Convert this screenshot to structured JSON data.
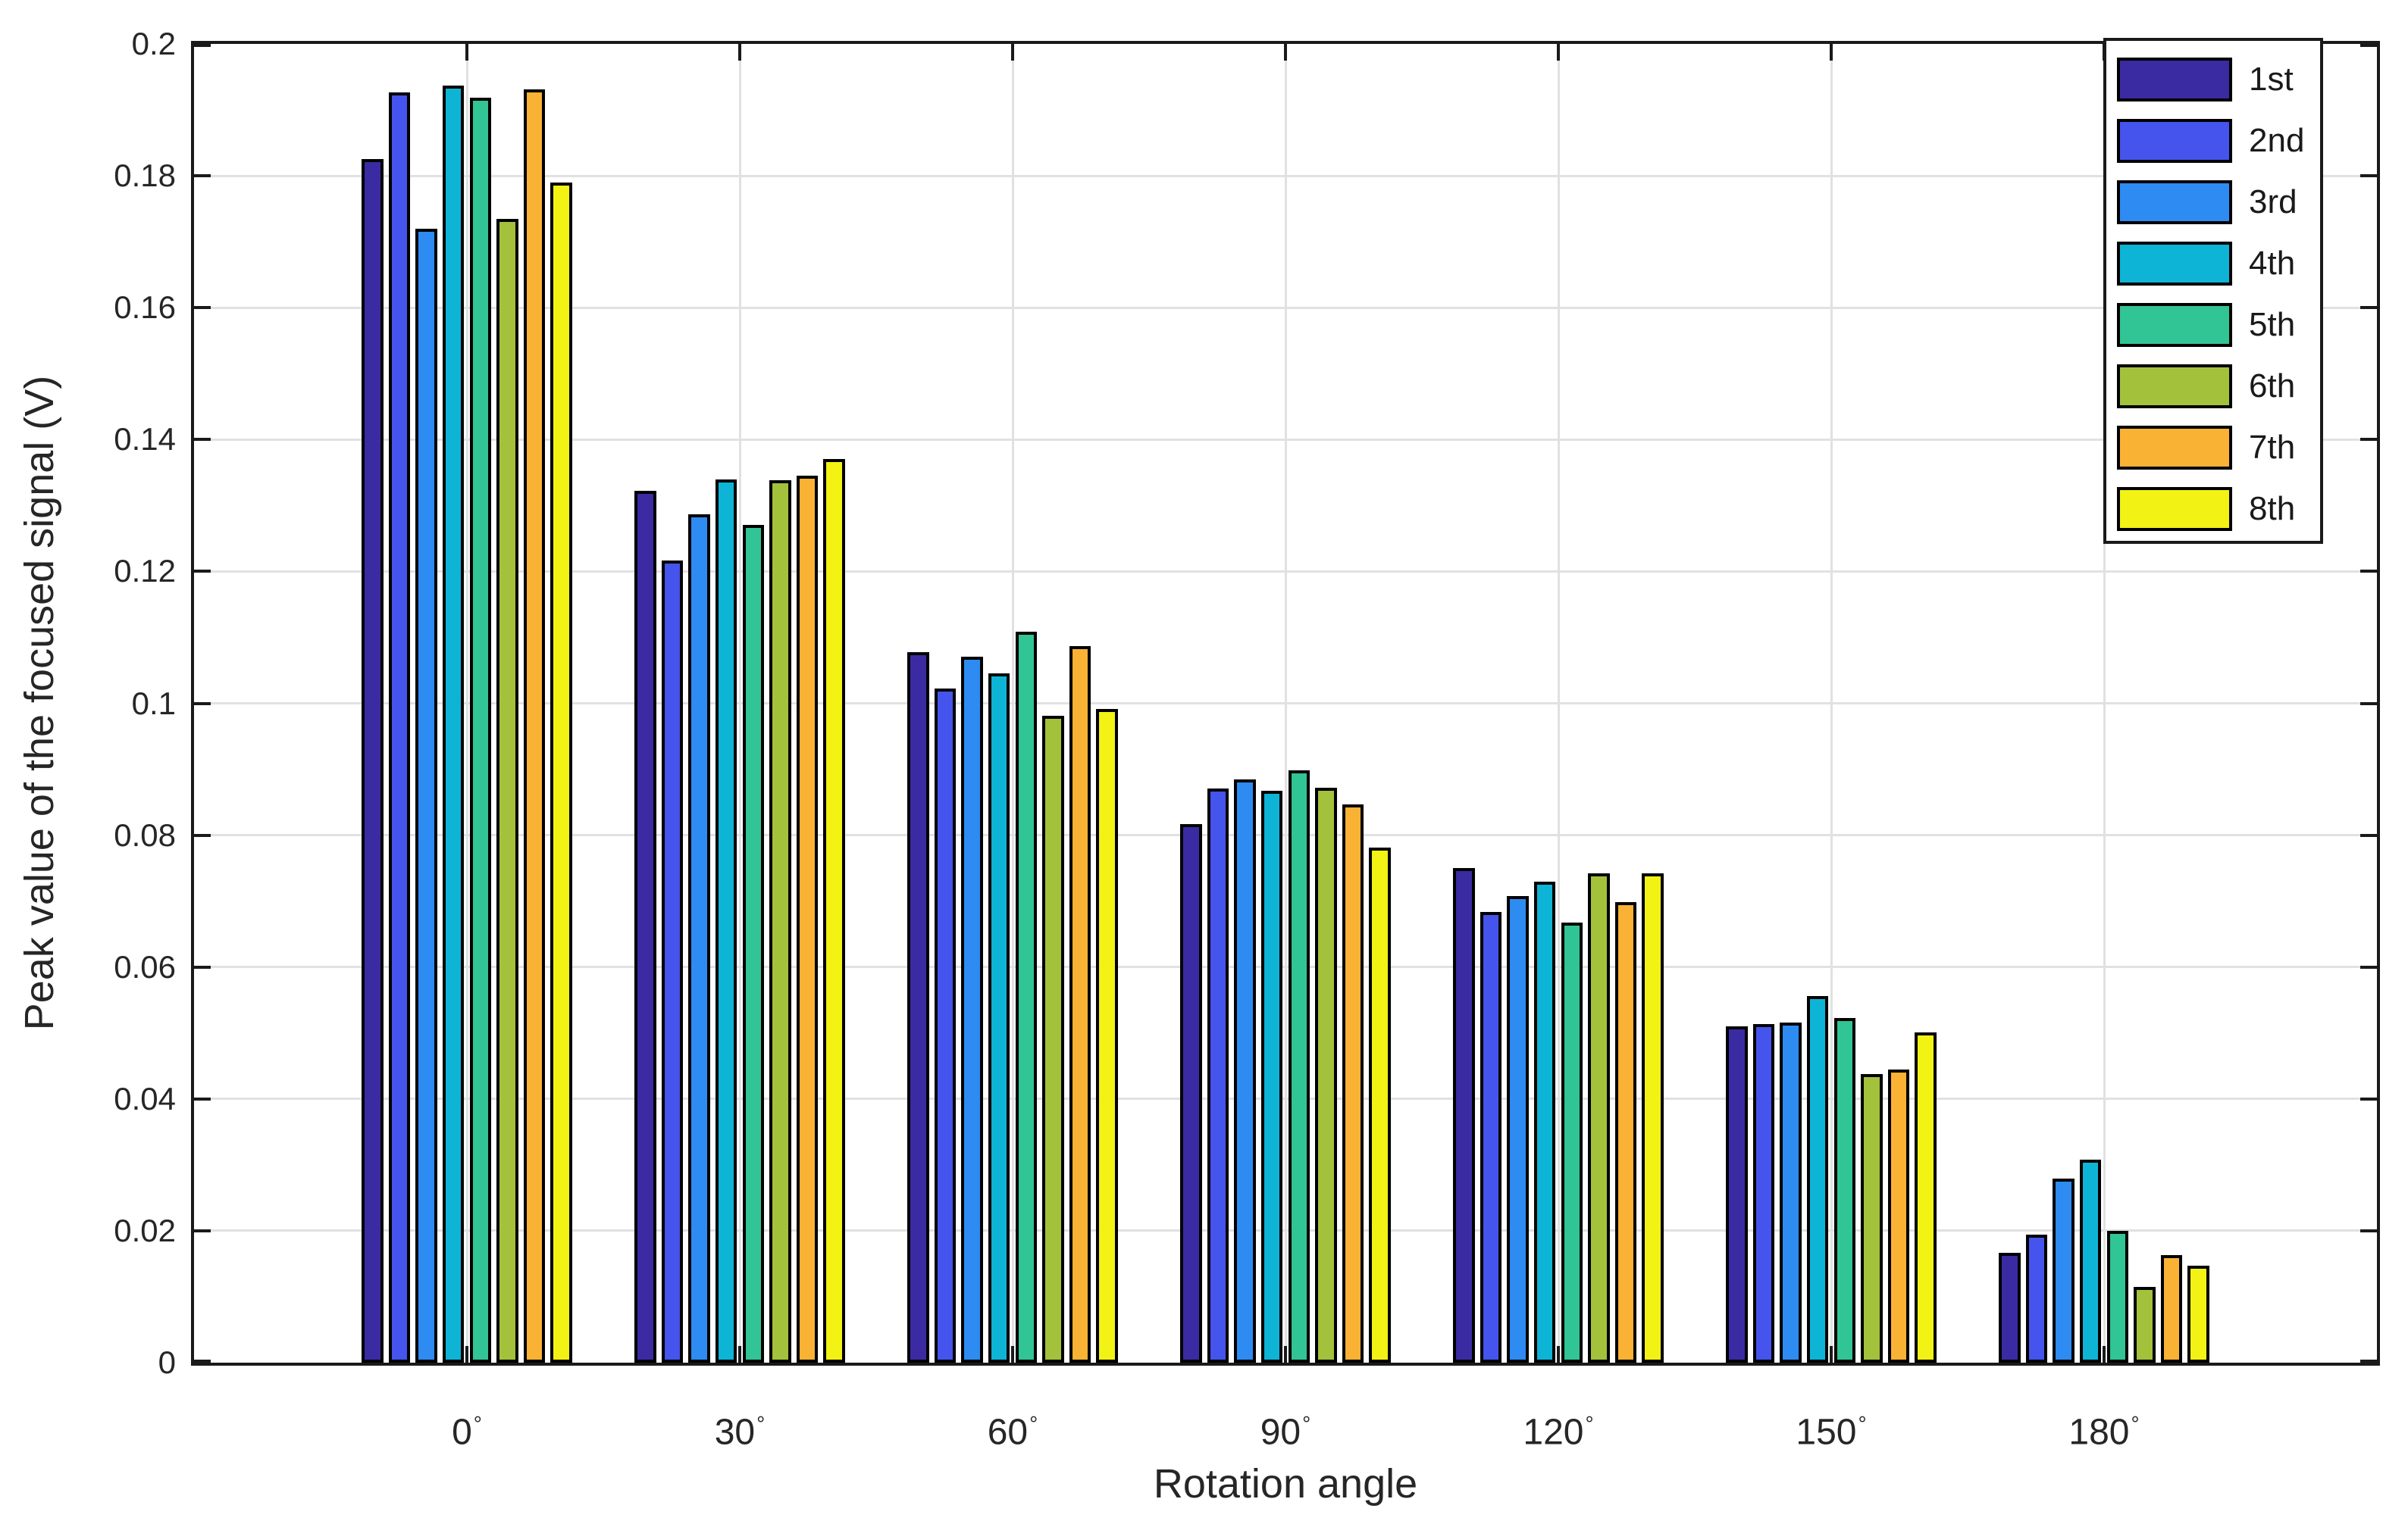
{
  "chart_data": {
    "type": "bar",
    "title": "",
    "xlabel": "Rotation angle",
    "ylabel": "Peak value of the focused signal (V)",
    "categories": [
      "0",
      "30",
      "60",
      "90",
      "120",
      "150",
      "180"
    ],
    "category_suffix": "°",
    "ylim": [
      0,
      0.2
    ],
    "ytick_step": 0.02,
    "ytick_labels": [
      "0",
      "0.02",
      "0.04",
      "0.06",
      "0.08",
      "0.1",
      "0.12",
      "0.14",
      "0.16",
      "0.18",
      "0.2"
    ],
    "grid": true,
    "legend_position": "top-right",
    "series": [
      {
        "name": "1st",
        "color": "#3A2BA2",
        "values": [
          0.1825,
          0.1322,
          0.1077,
          0.0817,
          0.075,
          0.051,
          0.0167
        ]
      },
      {
        "name": "2nd",
        "color": "#4554EC",
        "values": [
          0.1927,
          0.1217,
          0.1022,
          0.0871,
          0.0683,
          0.0514,
          0.0194
        ]
      },
      {
        "name": "3rd",
        "color": "#2E8BF2",
        "values": [
          0.172,
          0.1287,
          0.1071,
          0.0885,
          0.0708,
          0.0516,
          0.0279
        ]
      },
      {
        "name": "4th",
        "color": "#0EB4D5",
        "values": [
          0.1937,
          0.1339,
          0.1045,
          0.0867,
          0.0729,
          0.0556,
          0.0308
        ]
      },
      {
        "name": "5th",
        "color": "#31C494",
        "values": [
          0.1918,
          0.127,
          0.1109,
          0.0898,
          0.0668,
          0.0523,
          0.02
        ]
      },
      {
        "name": "6th",
        "color": "#A4C13B",
        "values": [
          0.1735,
          0.1338,
          0.0981,
          0.0872,
          0.0742,
          0.0438,
          0.0115
        ]
      },
      {
        "name": "7th",
        "color": "#F9B234",
        "values": [
          0.1931,
          0.1345,
          0.1087,
          0.0847,
          0.0698,
          0.0444,
          0.0163
        ]
      },
      {
        "name": "8th",
        "color": "#F2F214",
        "values": [
          0.179,
          0.137,
          0.0991,
          0.0781,
          0.0742,
          0.0501,
          0.0147
        ]
      }
    ],
    "styles": {
      "axis_color": "#1A1A1A",
      "grid_color": "#E1E1E1",
      "text_color": "#262626",
      "bar_edge_color": "#000000",
      "background": "#FFFFFF"
    }
  }
}
